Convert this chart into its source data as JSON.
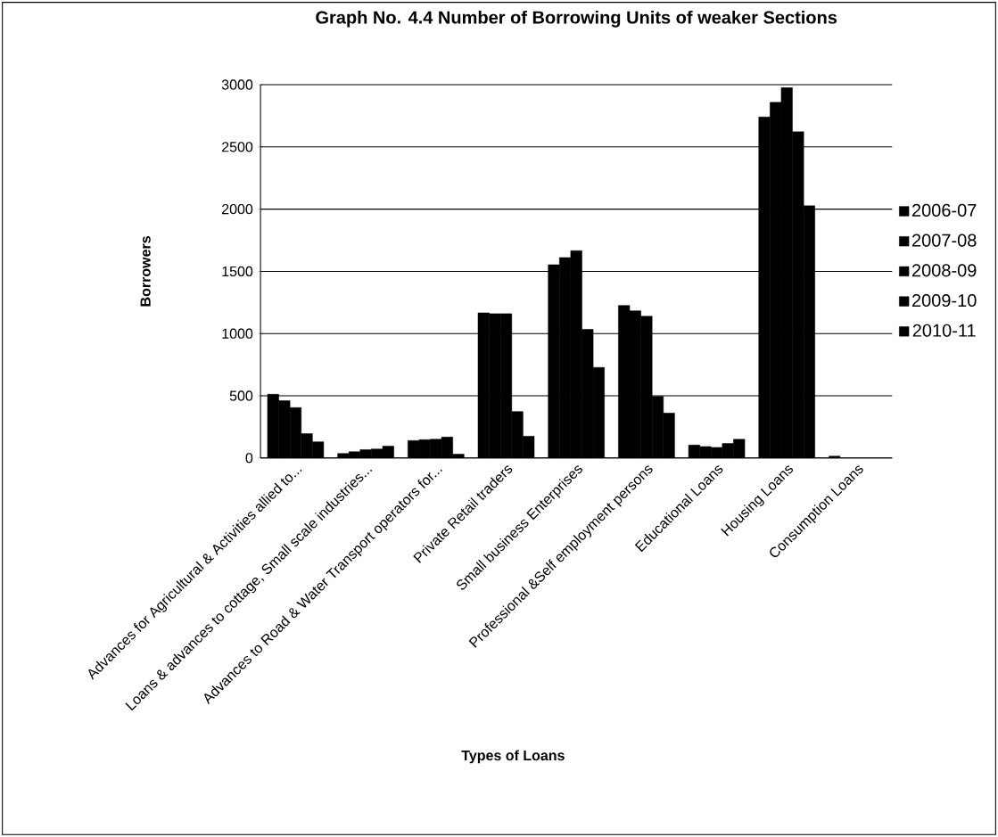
{
  "chart_data": {
    "type": "bar",
    "title": "Graph No. 4.4  Number of Borrowing Units of weaker Sections",
    "xlabel": "Types of Loans",
    "ylabel": "Borrowers",
    "categories": [
      "Advances for Agricultural & Activities allied to...",
      "Loans & advances to cottage, Small scale industries...",
      "Advances to Road & Water Transport operators for...",
      "Private Retail traders",
      "Small business Enterprises",
      "Professional &Self employment persons",
      "Educational Loans",
      "Housing Loans",
      "Consumption Loans"
    ],
    "series": [
      {
        "name": "2006-07",
        "color": "#000000",
        "values": [
          512,
          36,
          140,
          1166,
          1553,
          1226,
          104,
          2741,
          15
        ]
      },
      {
        "name": "2007-08",
        "color": "#000000",
        "values": [
          460,
          50,
          147,
          1160,
          1611,
          1183,
          92,
          2858,
          null
        ]
      },
      {
        "name": "2008-09",
        "color": "#000000",
        "values": [
          405,
          67,
          151,
          1160,
          1666,
          1139,
          85,
          2976,
          null
        ]
      },
      {
        "name": "2009-10",
        "color": "#000000",
        "values": [
          195,
          72,
          168,
          373,
          1034,
          495,
          116,
          2623,
          null
        ]
      },
      {
        "name": "2010-11",
        "color": "#000000",
        "values": [
          130,
          96,
          31,
          175,
          728,
          361,
          150,
          2028,
          null
        ]
      }
    ],
    "ylim": [
      0,
      3000
    ],
    "yticks": [
      0,
      500,
      1000,
      1500,
      2000,
      2500,
      3000
    ],
    "grid": "y",
    "legend": "right"
  }
}
